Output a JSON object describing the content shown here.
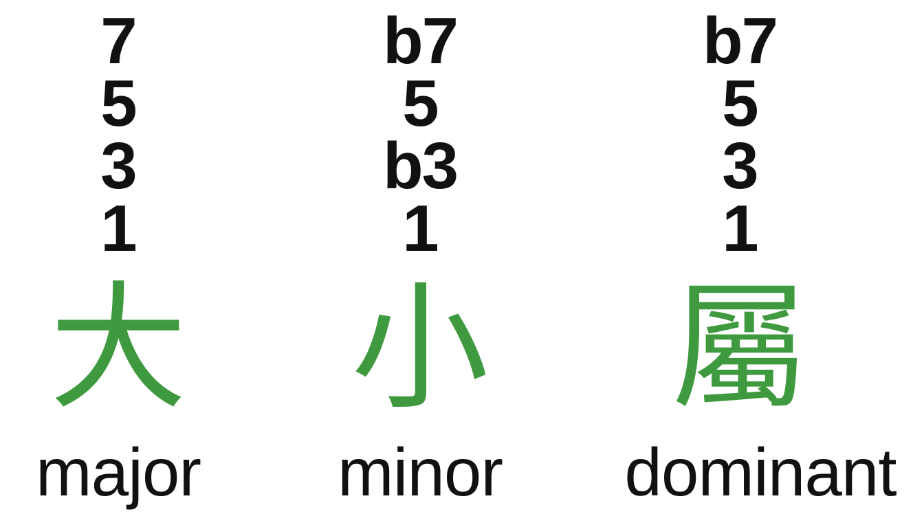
{
  "columns": [
    {
      "intervals": [
        "7",
        "5",
        "3",
        "1"
      ],
      "character": "大",
      "label": "major"
    },
    {
      "intervals": [
        "b7",
        "5",
        "b3",
        "1"
      ],
      "character": "小",
      "label": "minor"
    },
    {
      "intervals": [
        "b7",
        "5",
        "3",
        "1"
      ],
      "character": "屬",
      "label": "dominant"
    }
  ],
  "colors": {
    "character": "#3f9a3f",
    "text": "#111111",
    "background": "#ffffff"
  }
}
